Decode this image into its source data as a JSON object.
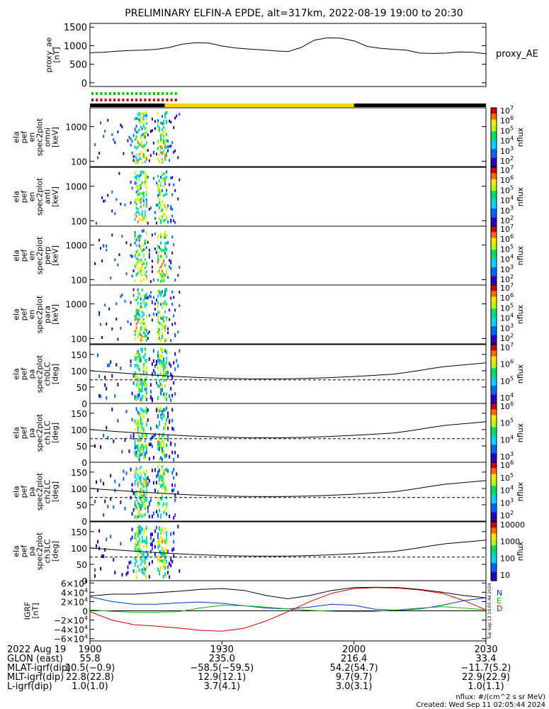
{
  "title": "PRELIMINARY ELFIN-A EPDE, alt=317km, 2022-08-19 19:00 to 20:30",
  "chart_data": [
    {
      "type": "line",
      "ylabel": "proxy_ae\n[nT]",
      "legend": "proxy_AE",
      "ylim": [
        -100,
        1600
      ],
      "yticks": [
        "1500",
        "1000",
        "500",
        "0"
      ],
      "ytick_values": [
        1500,
        1000,
        500,
        0
      ],
      "x_minutes": [
        0,
        3,
        6,
        9,
        12,
        15,
        18,
        21,
        24,
        27,
        30,
        33,
        36,
        39,
        42,
        45,
        48,
        51,
        54,
        57,
        60,
        63,
        66,
        69,
        72,
        75,
        78,
        81,
        84,
        87,
        90
      ],
      "values": [
        810,
        820,
        850,
        870,
        880,
        900,
        950,
        1040,
        1080,
        1070,
        990,
        940,
        910,
        890,
        860,
        840,
        950,
        1150,
        1210,
        1200,
        1130,
        980,
        930,
        900,
        880,
        800,
        790,
        800,
        830,
        820,
        780
      ]
    },
    {
      "type": "heatmap",
      "ylabel": "ela\npef\nen\nspec2plot\nomni\n[keV]",
      "yticks": [
        "1000",
        "100"
      ],
      "ytick_values": [
        1000,
        100
      ],
      "yscale": "log",
      "colorbar_label": "nflux",
      "colorbar_ticks": [
        "10^7",
        "10^6",
        "10^5",
        "10^4",
        "10^3",
        "10^2"
      ]
    },
    {
      "type": "heatmap",
      "ylabel": "ela\npef\nen\nspec2plot\nanti\n[keV]",
      "yticks": [
        "1000",
        "100"
      ],
      "ytick_values": [
        1000,
        100
      ],
      "yscale": "log",
      "colorbar_label": "nflux",
      "colorbar_ticks": [
        "10^7",
        "10^6",
        "10^5",
        "10^4",
        "10^3",
        "10^2"
      ]
    },
    {
      "type": "heatmap",
      "ylabel": "ela\npef\nen\nspec2plot\nperp\n[keV]",
      "yticks": [
        "1000",
        "100"
      ],
      "ytick_values": [
        1000,
        100
      ],
      "yscale": "log",
      "colorbar_label": "nflux",
      "colorbar_ticks": [
        "10^7",
        "10^6",
        "10^5",
        "10^4",
        "10^3",
        "10^2"
      ]
    },
    {
      "type": "heatmap",
      "ylabel": "ela\npef\nen\nspec2plot\npara\n[keV]",
      "yticks": [
        "1000",
        "100"
      ],
      "ytick_values": [
        1000,
        100
      ],
      "yscale": "log",
      "colorbar_label": "nflux",
      "colorbar_ticks": [
        "10^7",
        "10^6",
        "10^5",
        "10^4",
        "10^3",
        "10^2"
      ]
    },
    {
      "type": "heatmap",
      "ylabel": "ela\npef\npa\nspec2plot\nch0LC\n[deg]",
      "yticks": [
        "150",
        "100",
        "50",
        "0"
      ],
      "ytick_values": [
        150,
        100,
        50,
        0
      ],
      "colorbar_label": "nflux",
      "colorbar_ticks": [
        "10^7",
        "10^6",
        "10^5",
        "10^4"
      ]
    },
    {
      "type": "heatmap",
      "ylabel": "ela\npef\npa\nspec2plot\nch1LC\n[deg]",
      "yticks": [
        "150",
        "100",
        "50",
        "0"
      ],
      "ytick_values": [
        150,
        100,
        50,
        0
      ],
      "colorbar_label": "nflux",
      "colorbar_ticks": [
        "10^6",
        "10^5",
        "10^4",
        "10^3"
      ]
    },
    {
      "type": "heatmap",
      "ylabel": "ela\npef\npa\nspec2plot\nch2LC\n[deg]",
      "yticks": [
        "150",
        "100",
        "50",
        "0"
      ],
      "ytick_values": [
        150,
        100,
        50,
        0
      ],
      "colorbar_label": "nflux",
      "colorbar_ticks": [
        "10^6",
        "10^5",
        "10^4",
        "10^3",
        "10^2"
      ]
    },
    {
      "type": "heatmap",
      "ylabel": "ela\npef\npa\nspec2plot\nch3LC\n[deg]",
      "yticks": [
        "150",
        "100",
        "50",
        "0"
      ],
      "ytick_values": [
        150,
        100,
        50,
        0
      ],
      "colorbar_label": "nflux",
      "colorbar_ticks": [
        "10000",
        "1000",
        "100",
        "10"
      ]
    },
    {
      "type": "line",
      "ylabel": "IGRF\n[nT]",
      "ylim": [
        -65000,
        65000
      ],
      "yticks": [
        "6×10^4",
        "4×10^4",
        "2×10^4",
        "0",
        "−2×10^4",
        "−4×10^4",
        "−6×10^4"
      ],
      "ytick_values": [
        60000,
        40000,
        20000,
        0,
        -20000,
        -40000,
        -60000
      ],
      "legend": [
        "N",
        "E",
        "D"
      ],
      "x_minutes": [
        0,
        5,
        10,
        15,
        20,
        25,
        30,
        35,
        40,
        45,
        50,
        55,
        60,
        65,
        70,
        75,
        80,
        85,
        90
      ],
      "series": [
        {
          "name": "N",
          "values": [
            30000,
            20000,
            14000,
            14000,
            17000,
            19000,
            16000,
            11000,
            6000,
            4000,
            8000,
            14000,
            12000,
            3000,
            1000,
            4000,
            12000,
            22000,
            28000
          ]
        },
        {
          "name": "E",
          "values": [
            2000,
            -1000,
            -3000,
            -3000,
            -2000,
            6000,
            12000,
            11000,
            8000,
            4000,
            1000,
            -1000,
            -2000,
            -1000,
            2000,
            6000,
            9000,
            6000,
            2000
          ]
        },
        {
          "name": "D",
          "values": [
            -2000,
            -20000,
            -30000,
            -33000,
            -37000,
            -42000,
            -44000,
            -38000,
            -22000,
            -2000,
            20000,
            38000,
            48000,
            50000,
            49000,
            45000,
            38000,
            22000,
            2000
          ]
        }
      ],
      "total_field": [
        32000,
        36000,
        36000,
        39000,
        42000,
        46000,
        48000,
        44000,
        33000,
        26000,
        33000,
        44000,
        50000,
        51000,
        50000,
        46000,
        40000,
        33000,
        28000
      ]
    }
  ],
  "orbit_bars": {
    "labels": [
      "green-dots",
      "red-dots"
    ],
    "segments": [
      "black",
      "gold",
      "black"
    ]
  },
  "bottom_table": {
    "col_headers": [
      "2022 Aug 19",
      "1900",
      "1930",
      "2000",
      "2030"
    ],
    "rows": [
      [
        "GLON (east)",
        "55.8",
        "235.0",
        "216.4",
        "33.4"
      ],
      [
        "MLAT-igrf(dip)",
        "10.5(−0.9)",
        "−58.5(−59.5)",
        "54.2(54.7)",
        "−11.7(5.2)"
      ],
      [
        "MLT-igrf(dip)",
        "22.8(22.8)",
        "12.9(12.1)",
        "9.7(9.7)",
        "22.9(22.9)"
      ],
      [
        "L-igrf(dip)",
        "1.0(1.0)",
        "3.7(4.1)",
        "3.0(3.1)",
        "1.0(1.1)"
      ]
    ]
  },
  "footer": {
    "units": "nflux: #/(cm^2 s sr MeV)",
    "created": "Created: Wed Sep 11 02:05:44 2024",
    "timestamp_side": "Tue Sep 13 19:05:44 2024"
  },
  "colors": {
    "ae_line": "#000000",
    "N": "#0033cc",
    "E": "#00bb00",
    "D": "#cc0000",
    "gold": "#ffd700"
  }
}
